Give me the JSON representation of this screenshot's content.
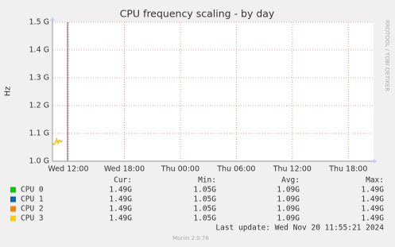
{
  "chart_data": {
    "type": "line",
    "title": "CPU frequency scaling - by day",
    "y_label": "Hz",
    "side_text": "RRDTOOL / TOBI OETIKER",
    "x": [
      10.3,
      10.45,
      10.6,
      10.75,
      10.9,
      11.05,
      11.2,
      11.35
    ],
    "xlim": [
      10.3,
      44.7
    ],
    "xticks": [
      {
        "value": 12,
        "label": "Wed 12:00"
      },
      {
        "value": 18,
        "label": "Wed 18:00"
      },
      {
        "value": 24,
        "label": "Thu 00:00"
      },
      {
        "value": 30,
        "label": "Thu 06:00"
      },
      {
        "value": 36,
        "label": "Thu 12:00"
      },
      {
        "value": 42,
        "label": "Thu 18:00"
      }
    ],
    "ylim": [
      1.0,
      1.5
    ],
    "yticks": [
      {
        "value": 1.0,
        "label": "1.0 G"
      },
      {
        "value": 1.1,
        "label": "1.1 G"
      },
      {
        "value": 1.2,
        "label": "1.2 G"
      },
      {
        "value": 1.3,
        "label": "1.3 G"
      },
      {
        "value": 1.4,
        "label": "1.4 G"
      },
      {
        "value": 1.5,
        "label": "1.5 G"
      }
    ],
    "grid": true,
    "series": [
      {
        "name": "CPU 0",
        "color": "#00cc00",
        "values": [
          1.065,
          1.06,
          1.065,
          1.08,
          1.065,
          1.075,
          1.07,
          1.075
        ]
      },
      {
        "name": "CPU 1",
        "color": "#0066b3",
        "values": [
          1.065,
          1.06,
          1.065,
          1.08,
          1.065,
          1.075,
          1.07,
          1.075
        ]
      },
      {
        "name": "CPU 2",
        "color": "#ff8000",
        "values": [
          1.065,
          1.06,
          1.065,
          1.08,
          1.065,
          1.075,
          1.07,
          1.075
        ]
      },
      {
        "name": "CPU 3",
        "color": "#ffcc00",
        "values": [
          1.065,
          1.06,
          1.065,
          1.08,
          1.065,
          1.075,
          1.07,
          1.075
        ]
      }
    ],
    "stats": {
      "headers": [
        "Cur:",
        "Min:",
        "Avg:",
        "Max:"
      ],
      "rows": [
        [
          "1.49G",
          "1.05G",
          "1.09G",
          "1.49G"
        ],
        [
          "1.49G",
          "1.05G",
          "1.09G",
          "1.49G"
        ],
        [
          "1.49G",
          "1.05G",
          "1.09G",
          "1.49G"
        ],
        [
          "1.49G",
          "1.05G",
          "1.09G",
          "1.49G"
        ]
      ]
    },
    "last_update": "Last update: Wed Nov 20 11:55:21 2024",
    "footer": "Munin 2.0.76"
  }
}
